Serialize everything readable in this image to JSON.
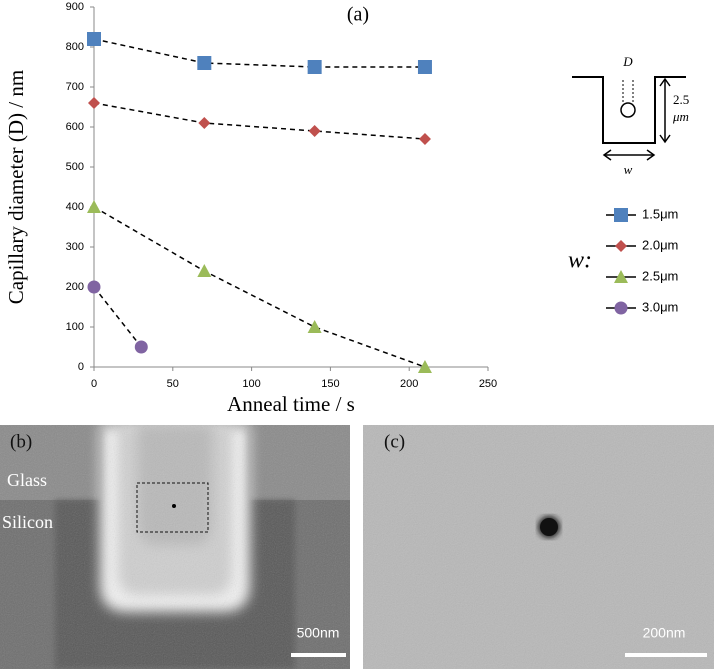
{
  "chart_data": {
    "type": "line",
    "title": "(a)",
    "x_label": "Anneal time / s",
    "y_label": "Capillary diameter (D) / nm",
    "legend_title": "w:",
    "legend_position": "right",
    "xlim": [
      0,
      250
    ],
    "xticks": [
      0,
      50,
      100,
      150,
      200,
      250
    ],
    "ylim": [
      0,
      900
    ],
    "yticks": [
      0,
      100,
      200,
      300,
      400,
      500,
      600,
      700,
      800,
      900
    ],
    "grid": false,
    "series": [
      {
        "name": "1.5μm",
        "color": "#4f81bd",
        "marker": "square",
        "x": [
          0,
          70,
          140,
          210
        ],
        "values": [
          820,
          760,
          750,
          750
        ]
      },
      {
        "name": "2.0μm",
        "color": "#c0504d",
        "marker": "diamond",
        "x": [
          0,
          70,
          140,
          210
        ],
        "values": [
          660,
          610,
          590,
          570
        ]
      },
      {
        "name": "2.5μm",
        "color": "#9bbb59",
        "marker": "triangle",
        "x": [
          0,
          70,
          140,
          210
        ],
        "values": [
          400,
          240,
          100,
          0
        ]
      },
      {
        "name": "3.0μm",
        "color": "#8064a2",
        "marker": "circle",
        "x": [
          0,
          30
        ],
        "values": [
          200,
          50
        ]
      }
    ],
    "inset": {
      "diameter": "D",
      "depth": "2.5",
      "depth_unit": "μm",
      "width": "w"
    }
  },
  "panels": [
    {
      "label": "(b)",
      "materials": [
        "Glass",
        "Silicon"
      ],
      "scale_bar": "500nm"
    },
    {
      "label": "(c)",
      "scale_bar": "200nm"
    }
  ]
}
